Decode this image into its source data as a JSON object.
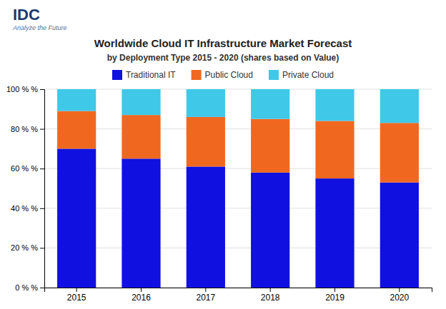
{
  "chart_data": {
    "type": "bar",
    "title": "Worldwide Cloud IT Infrastructure Market Forecast",
    "subtitle": "by Deployment Type  2015 - 2020 (shares based on Value)",
    "annotations": [
      "IDC",
      "Analyze the Future"
    ],
    "categories": [
      "2015",
      "2016",
      "2017",
      "2018",
      "2019",
      "2020"
    ],
    "series": [
      {
        "name": "Traditional IT",
        "color": "#1010e0",
        "values": [
          70,
          65,
          61,
          58,
          55,
          53
        ]
      },
      {
        "name": "Public Cloud",
        "color": "#f06820",
        "values": [
          19,
          22,
          25,
          27,
          29,
          30
        ]
      },
      {
        "name": "Private Cloud",
        "color": "#40c8e8",
        "values": [
          11,
          13,
          14,
          15,
          16,
          17
        ]
      }
    ],
    "stacked": true,
    "ylim": [
      0,
      100
    ],
    "yticks": [
      {
        "value": 0,
        "label": "0 % %"
      },
      {
        "value": 20,
        "label": "20 % %"
      },
      {
        "value": 40,
        "label": "40 % %"
      },
      {
        "value": 60,
        "label": "60 % %"
      },
      {
        "value": 80,
        "label": "80 % %"
      },
      {
        "value": 100,
        "label": "100 % %"
      }
    ],
    "grid": true,
    "legend": "top"
  }
}
